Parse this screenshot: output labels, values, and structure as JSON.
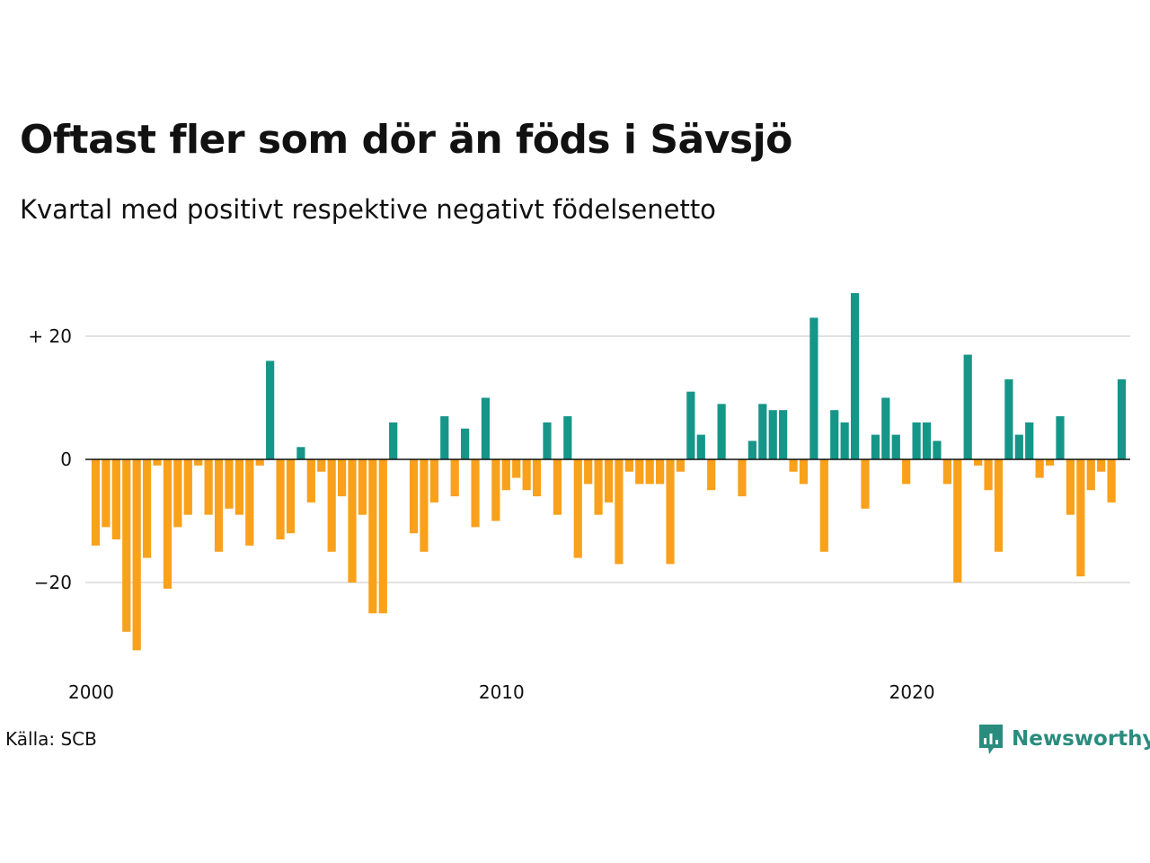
{
  "header": {
    "title": "Oftast fler som dör än föds i Sävsjö",
    "subtitle": "Kvartal med positivt respektive negativt födelsenetto"
  },
  "footer": {
    "source": "Källa: SCB",
    "logo_text": "Newsworthy",
    "logo_icon": "newsworthy-chart-bubble-icon"
  },
  "chart_data": {
    "type": "bar",
    "x_start": "2000 Q1",
    "x_end": "2025 Q1",
    "x_ticks": [
      {
        "value": 2000,
        "label": "2000"
      },
      {
        "value": 2010,
        "label": "2010"
      },
      {
        "value": 2020,
        "label": "2020"
      }
    ],
    "y_ticks": [
      {
        "value": 20,
        "label": "+ 20"
      },
      {
        "value": 0,
        "label": "0"
      },
      {
        "value": -20,
        "label": "−20"
      }
    ],
    "ylim": [
      -33,
      29
    ],
    "grid": true,
    "colors": {
      "positive": "#159688",
      "negative": "#f9a11b"
    },
    "values": [
      -14,
      -11,
      -13,
      -28,
      -31,
      -16,
      -1,
      -21,
      -11,
      -9,
      -1,
      -9,
      -15,
      -8,
      -9,
      -14,
      -1,
      16,
      -13,
      -12,
      2,
      -7,
      -2,
      -15,
      -6,
      -20,
      -9,
      -25,
      -25,
      6,
      0,
      -12,
      -15,
      -7,
      7,
      -6,
      5,
      -11,
      10,
      -10,
      -5,
      -3,
      -5,
      -6,
      6,
      -9,
      7,
      -16,
      -4,
      -9,
      -7,
      -17,
      -2,
      -4,
      -4,
      -4,
      -17,
      -2,
      11,
      4,
      -5,
      9,
      0,
      -6,
      3,
      9,
      8,
      8,
      -2,
      -4,
      23,
      -15,
      8,
      6,
      27,
      -8,
      4,
      10,
      4,
      -4,
      6,
      6,
      3,
      -4,
      -20,
      17,
      -1,
      -5,
      -15,
      13,
      4,
      6,
      -3,
      -1,
      7,
      -9,
      -19,
      -5,
      -2,
      -7,
      13
    ]
  }
}
